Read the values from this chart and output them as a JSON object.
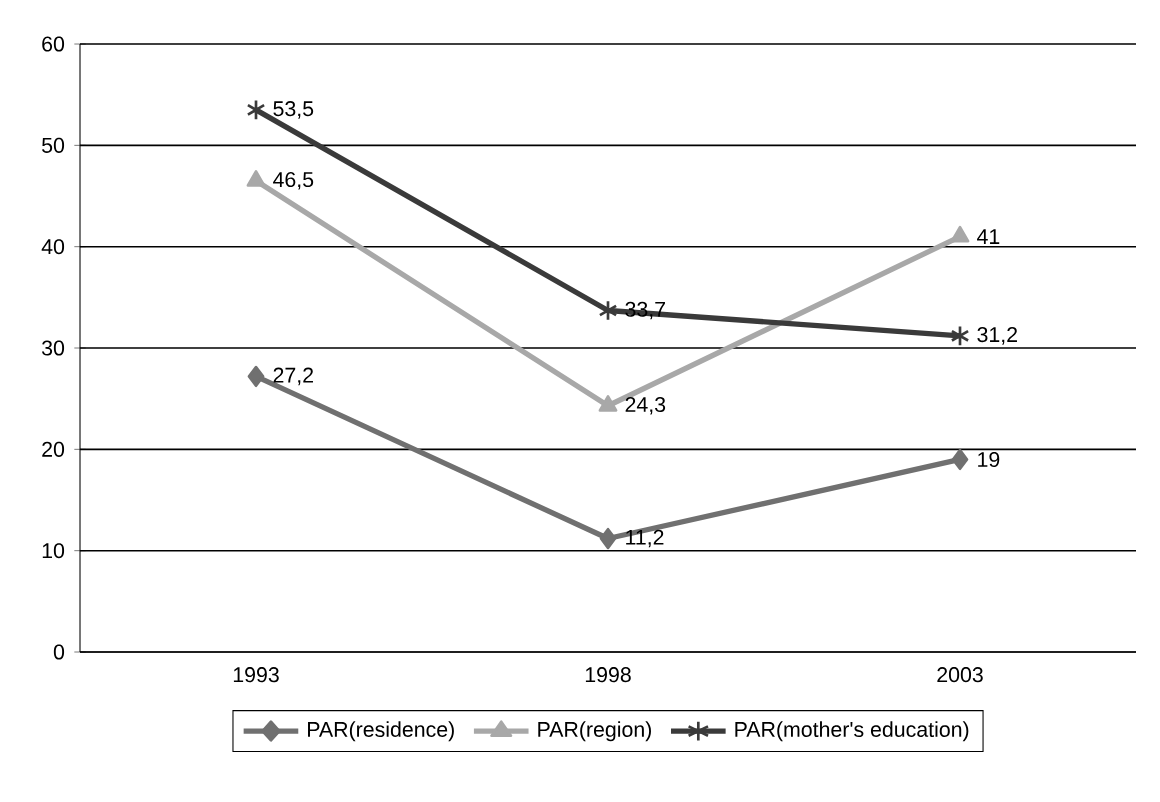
{
  "chart_data": {
    "type": "line",
    "categories": [
      "1993",
      "1998",
      "2003"
    ],
    "series": [
      {
        "name": "PAR(residence)",
        "color": "#707070",
        "marker": "diamond",
        "values": [
          27.2,
          11.2,
          19
        ],
        "value_labels": [
          "27,2",
          "11,2",
          "19"
        ]
      },
      {
        "name": "PAR(region)",
        "color": "#a8a8a8",
        "marker": "triangle",
        "values": [
          46.5,
          24.3,
          41
        ],
        "value_labels": [
          "46,5",
          "24,3",
          "41"
        ]
      },
      {
        "name": "PAR(mother's education)",
        "color": "#3a3a3a",
        "marker": "cross",
        "values": [
          53.5,
          33.7,
          31.2
        ],
        "value_labels": [
          "53,5",
          "33,7",
          "31,2"
        ]
      }
    ],
    "ylim": [
      0,
      60
    ],
    "yticks": [
      0,
      10,
      20,
      30,
      40,
      50,
      60
    ],
    "grid": "y",
    "legend": "bottom"
  }
}
